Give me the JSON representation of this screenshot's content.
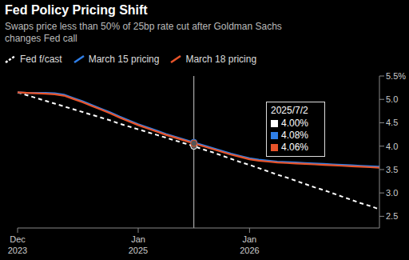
{
  "chart_data": {
    "type": "line",
    "title": "Fed Policy Pricing Shift",
    "subtitle": "Swaps price less than 50% of 25bp rate cut after Goldman Sachs changes Fed call",
    "categories": [
      "Dec 2023",
      null,
      null,
      null,
      null,
      null,
      null,
      null,
      null,
      null,
      null,
      null,
      null,
      "Jan 2025",
      null,
      null,
      null,
      null,
      null,
      null,
      null,
      null,
      null,
      null,
      null,
      "Jan 2026",
      null,
      null,
      null,
      null,
      null,
      null,
      null,
      null,
      null,
      null,
      null,
      null,
      null,
      null
    ],
    "series": [
      {
        "name": "Fed f/cast",
        "color": "#ffffff",
        "line_style": "dashed",
        "values": [
          5.15,
          5.09,
          5.03,
          4.97,
          4.91,
          4.85,
          4.79,
          4.73,
          4.67,
          4.61,
          4.55,
          4.48,
          4.42,
          4.36,
          4.3,
          4.24,
          4.18,
          4.12,
          4.06,
          4.0,
          3.93,
          3.87,
          3.8,
          3.73,
          3.66,
          3.6,
          3.53,
          3.46,
          3.39,
          3.33,
          3.26,
          3.19,
          3.12,
          3.06,
          2.99,
          2.92,
          2.85,
          2.78,
          2.72,
          2.65
        ]
      },
      {
        "name": "March 15 pricing",
        "color": "#2f7fe8",
        "line_style": "solid",
        "values": [
          5.15,
          5.14,
          5.14,
          5.14,
          5.13,
          5.1,
          5.03,
          4.96,
          4.88,
          4.8,
          4.72,
          4.63,
          4.55,
          4.47,
          4.4,
          4.33,
          4.26,
          4.2,
          4.14,
          4.08,
          4.02,
          3.96,
          3.9,
          3.84,
          3.79,
          3.74,
          3.71,
          3.69,
          3.67,
          3.66,
          3.65,
          3.64,
          3.63,
          3.62,
          3.61,
          3.6,
          3.59,
          3.58,
          3.57,
          3.56
        ]
      },
      {
        "name": "March 18 pricing",
        "color": "#e8542a",
        "line_style": "solid",
        "values": [
          5.15,
          5.14,
          5.13,
          5.12,
          5.11,
          5.08,
          5.01,
          4.94,
          4.86,
          4.78,
          4.7,
          4.61,
          4.53,
          4.45,
          4.38,
          4.31,
          4.24,
          4.18,
          4.12,
          4.06,
          4.0,
          3.94,
          3.88,
          3.82,
          3.77,
          3.72,
          3.69,
          3.67,
          3.65,
          3.64,
          3.63,
          3.62,
          3.61,
          3.6,
          3.59,
          3.58,
          3.57,
          3.56,
          3.55,
          3.54
        ]
      }
    ],
    "ylim": [
      2.25,
      5.5
    ],
    "yticks": [
      2.5,
      {
        "value": 3,
        "label": "3.0"
      },
      3.5,
      {
        "value": 4,
        "label": "4.0"
      },
      4.5,
      {
        "value": 5,
        "label": "5.0"
      },
      {
        "value": 5.5,
        "label": "5.5%"
      }
    ],
    "grid": false,
    "legend": "top",
    "annotation": {
      "label": "2025/7/2",
      "position": 19,
      "values": [
        4.0,
        4.08,
        4.06
      ],
      "value_labels": [
        "4.00%",
        "4.08%",
        "4.06%"
      ]
    }
  }
}
